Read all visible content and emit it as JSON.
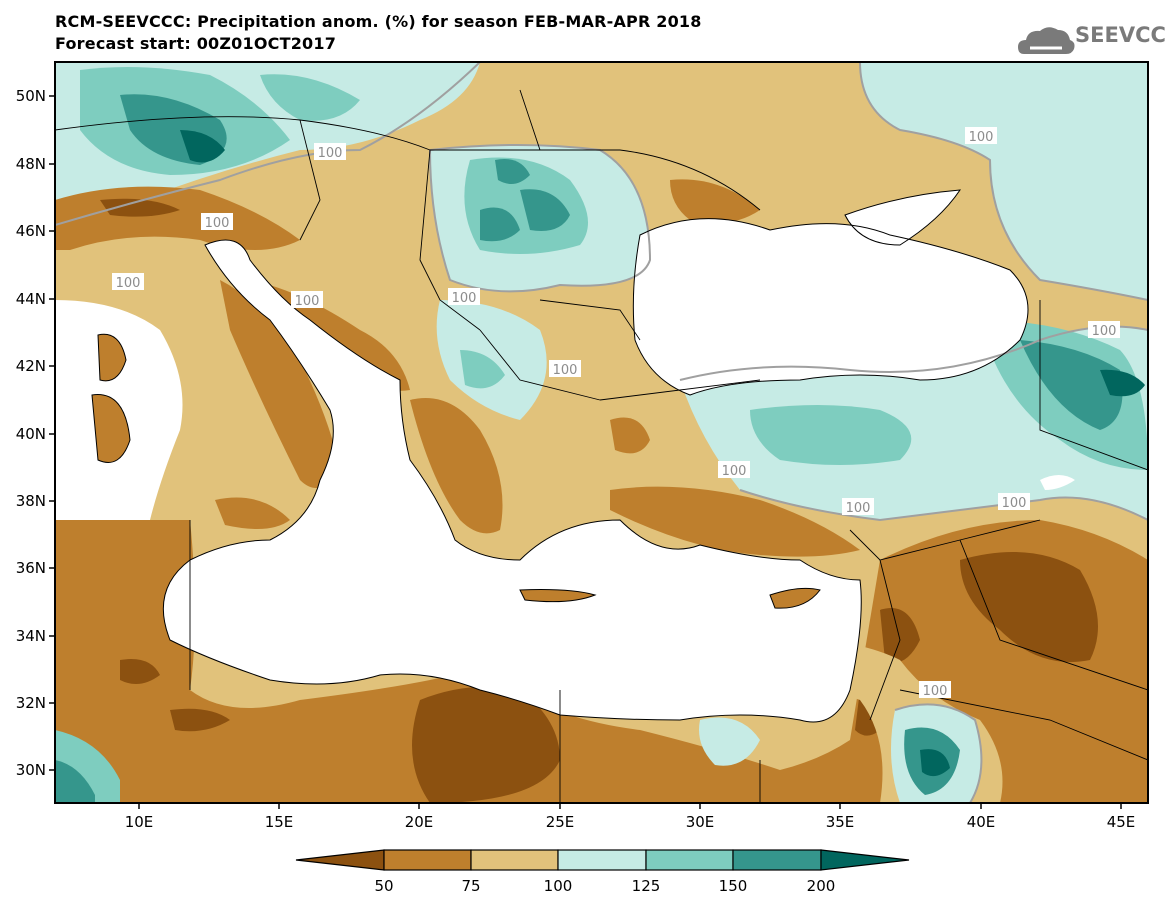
{
  "header": {
    "title_line1": "RCM-SEEVCCC: Precipitation anom. (%) for season FEB-MAR-APR 2018",
    "title_line2": "Forecast start: 00Z01OCT2017"
  },
  "logo": {
    "text": "SEEVCCC",
    "icon": "cloud-icon"
  },
  "map": {
    "lat_labels": [
      "50N",
      "48N",
      "46N",
      "44N",
      "42N",
      "40N",
      "38N",
      "36N",
      "34N",
      "32N",
      "30N"
    ],
    "lon_labels": [
      "10E",
      "15E",
      "20E",
      "25E",
      "30E",
      "35E",
      "40E",
      "45E"
    ],
    "contour_labels": [
      "100",
      "100",
      "100",
      "100",
      "100",
      "100",
      "100",
      "100",
      "100",
      "100",
      "100",
      "100"
    ]
  },
  "legend": {
    "ticks": [
      "50",
      "75",
      "100",
      "125",
      "150",
      "200"
    ],
    "colors": [
      "#8c5110",
      "#be7f2d",
      "#e1c27b",
      "#c6ebe5",
      "#7ecdbf",
      "#35968c",
      "#01665e"
    ]
  }
}
